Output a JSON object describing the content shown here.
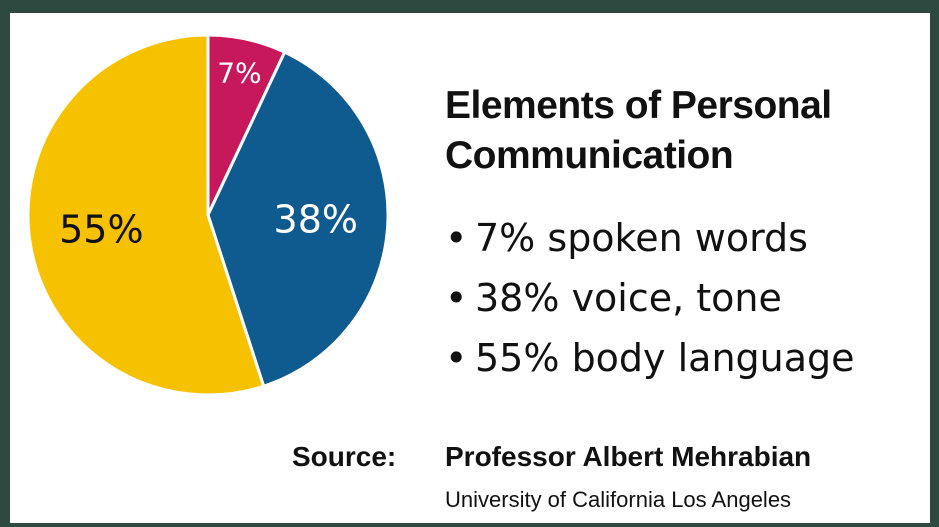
{
  "chart_data": {
    "type": "pie",
    "title": "Elements of Personal Communication",
    "categories": [
      "spoken words",
      "voice, tone",
      "body language"
    ],
    "values": [
      7,
      38,
      55
    ],
    "value_labels": [
      "7%",
      "38%",
      "55%"
    ],
    "colors": [
      "#c8185c",
      "#0f5a8e",
      "#f6c200"
    ],
    "label_colors": [
      "#ffffff",
      "#ffffff",
      "#111111"
    ],
    "source_label": "Source:",
    "source_name": "Professor Albert Mehrabian",
    "source_affiliation": "University of California Los Angeles"
  }
}
